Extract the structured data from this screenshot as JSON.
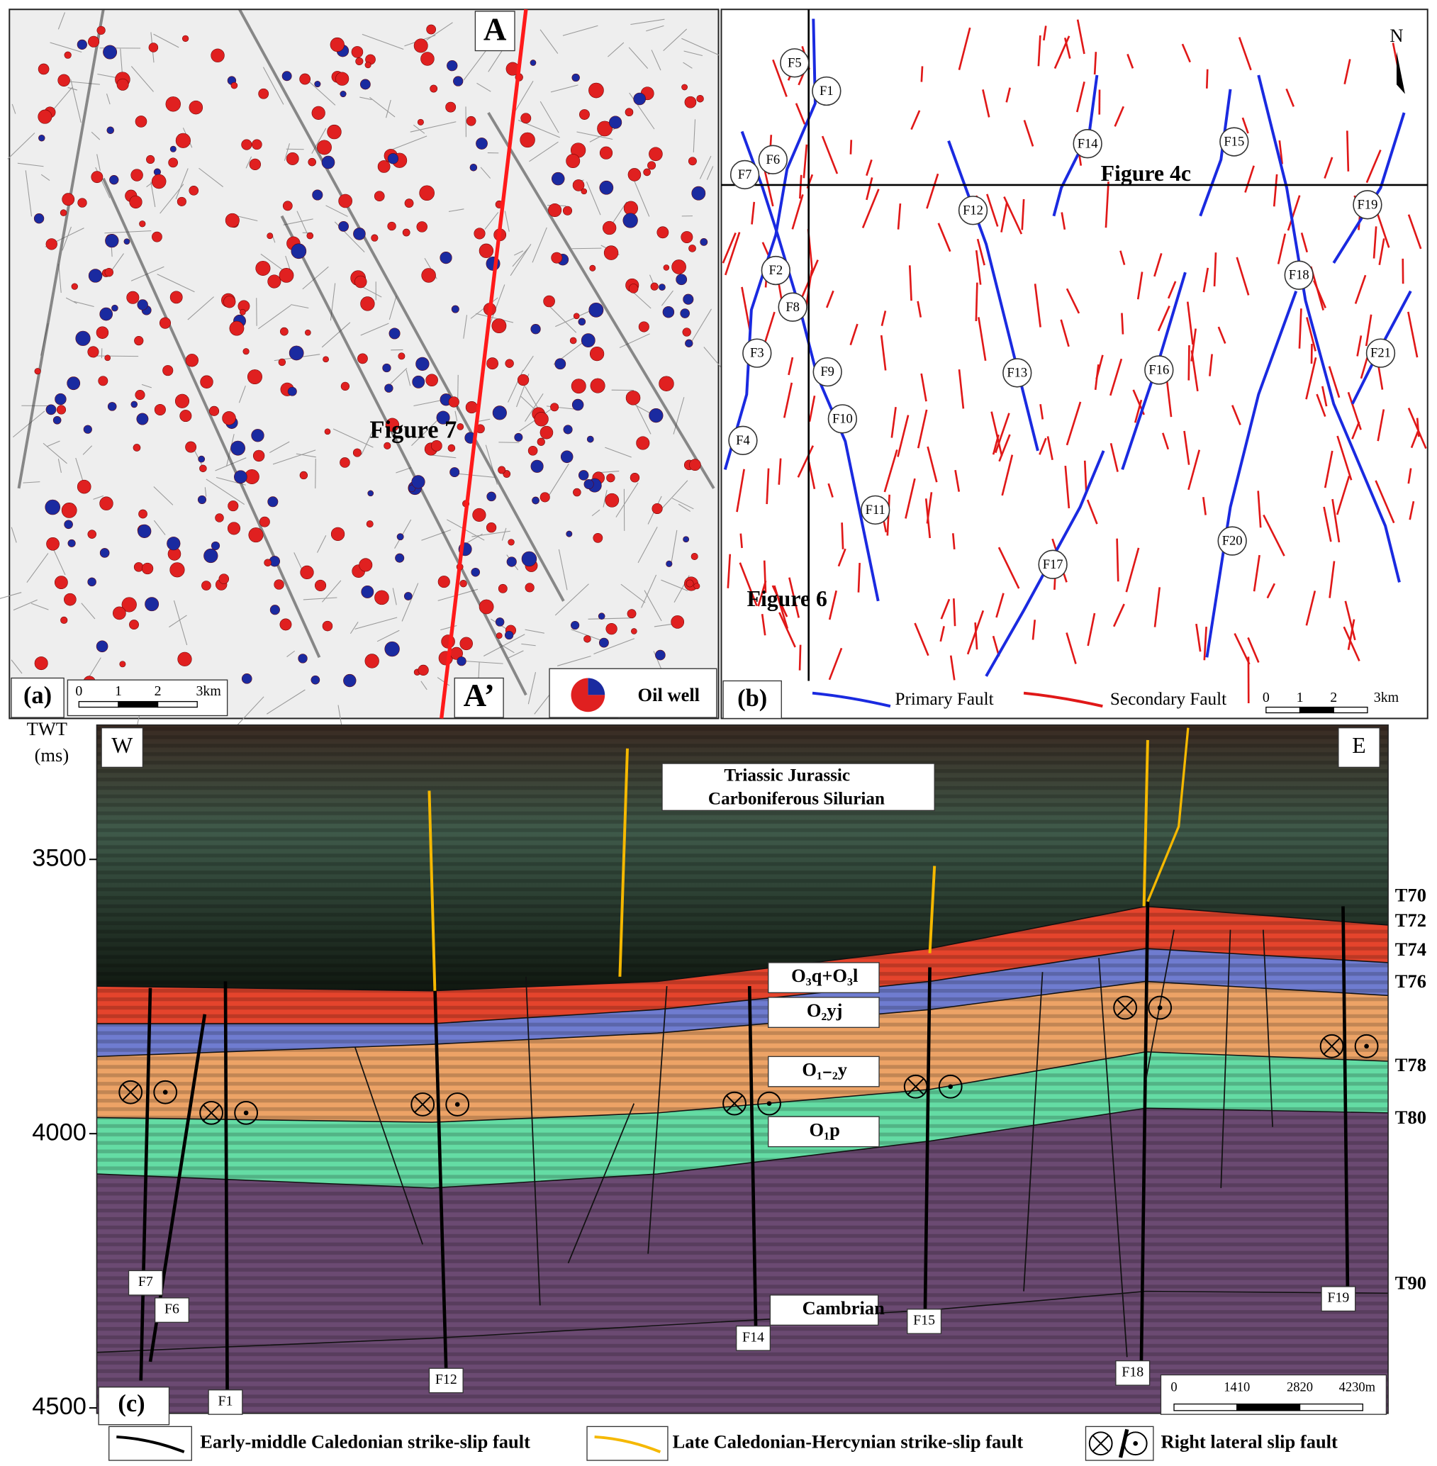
{
  "panel_a": {
    "label": "(a)",
    "section_start": "A",
    "section_end": "A’",
    "inset_label": "Figure 7",
    "scale_labels": [
      "0",
      "1",
      "2",
      "3km"
    ],
    "legend": "Oil well"
  },
  "panel_b": {
    "label": "(b)",
    "north": "N",
    "inset_labels": [
      "Figure 4c",
      "Figure 6"
    ],
    "faults": [
      "F1",
      "F2",
      "F3",
      "F4",
      "F5",
      "F6",
      "F7",
      "F8",
      "F9",
      "F10",
      "F11",
      "F12",
      "F13",
      "F14",
      "F15",
      "F16",
      "F17",
      "F18",
      "F19",
      "F20",
      "F21"
    ],
    "legend": [
      "Primary Fault",
      "Secondary Fault"
    ],
    "scale_labels": [
      "0",
      "1",
      "2",
      "3km"
    ]
  },
  "panel_c": {
    "label": "(c)",
    "y_axis_title": "TWT",
    "y_axis_unit": "(ms)",
    "ylim": [
      3255,
      4510
    ],
    "yticks": [
      3500,
      4000,
      4500
    ],
    "west": "W",
    "east": "E",
    "overburden": [
      "Triassic Jurassic",
      "Carboniferous Silurian"
    ],
    "formations": [
      "O₃q+O₃l",
      "O₂yj",
      "O₁₋₂y",
      "O₁p",
      "Cambrian"
    ],
    "horizons": [
      "T70",
      "T72",
      "T74",
      "T76",
      "T78",
      "T80",
      "T90"
    ],
    "faults": [
      "F7",
      "F6",
      "F1",
      "F12",
      "F14",
      "F15",
      "F18",
      "F19"
    ],
    "scale_labels": [
      "0",
      "1410",
      "2820",
      "4230m"
    ],
    "legend": [
      "Early-middle Caledonian strike-slip fault",
      "Late Caledonian-Hercynian strike-slip fault",
      "Right lateral slip fault"
    ]
  }
}
